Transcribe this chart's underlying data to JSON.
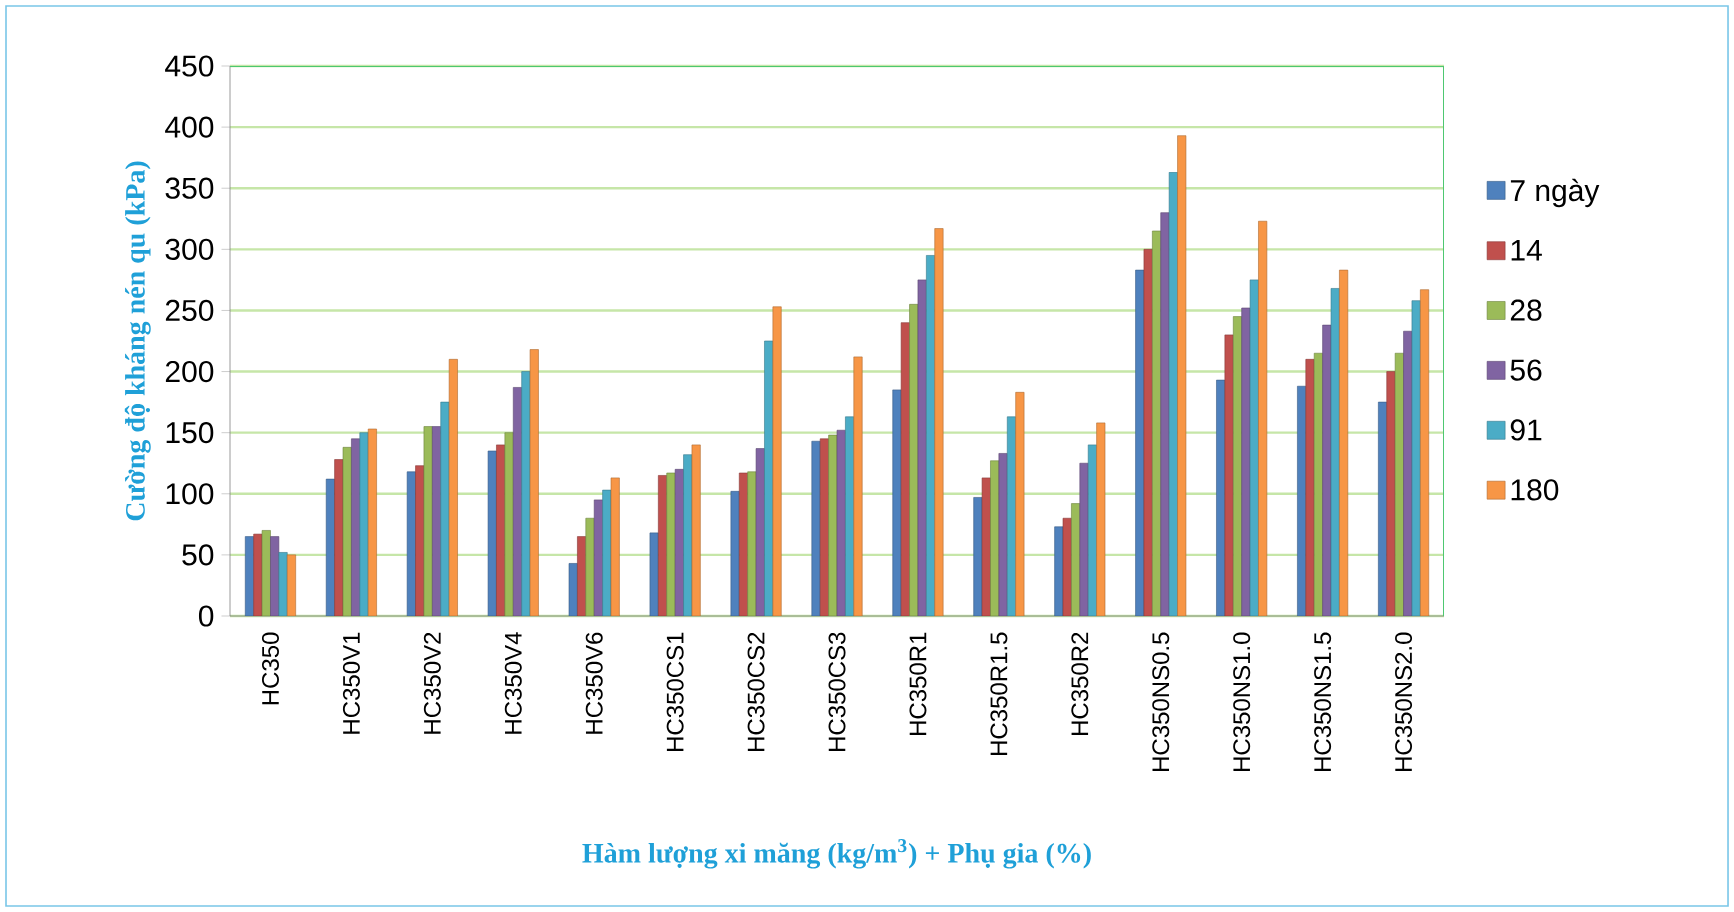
{
  "chart_data": {
    "type": "bar",
    "xlabel": "Hàm lượng xi măng (kg/m$^{3}$) + Phụ gia (%)",
    "ylabel": "Cường độ kháng nén qu (kPa)",
    "categories": [
      "HC350",
      "HC350V1",
      "HC350V2",
      "HC350V4",
      "HC350V6",
      "HC350CS1",
      "HC350CS2",
      "HC350CS3",
      "HC350R1",
      "HC350R1.5",
      "HC350R2",
      "HC350NS0.5",
      "HC350NS1.0",
      "HC350NS1.5",
      "HC350NS2.0"
    ],
    "series": [
      {
        "name": "7 ngày",
        "color": "#4f81bd",
        "values": [
          65,
          112,
          118,
          135,
          43,
          68,
          102,
          143,
          185,
          97,
          73,
          283,
          193,
          188,
          175
        ]
      },
      {
        "name": "14",
        "color": "#c0504d",
        "values": [
          67,
          128,
          123,
          140,
          65,
          115,
          117,
          145,
          240,
          113,
          80,
          300,
          230,
          210,
          200
        ]
      },
      {
        "name": "28",
        "color": "#9bbb59",
        "values": [
          70,
          138,
          155,
          150,
          80,
          117,
          118,
          148,
          255,
          127,
          92,
          315,
          245,
          215,
          215
        ]
      },
      {
        "name": "56",
        "color": "#8064a2",
        "values": [
          65,
          145,
          155,
          187,
          95,
          120,
          137,
          152,
          275,
          133,
          125,
          330,
          252,
          238,
          233
        ]
      },
      {
        "name": "91",
        "color": "#4bacc6",
        "values": [
          52,
          150,
          175,
          200,
          103,
          132,
          225,
          163,
          295,
          163,
          140,
          363,
          275,
          268,
          258
        ]
      },
      {
        "name": "180",
        "color": "#f79646",
        "values": [
          50,
          153,
          210,
          218,
          113,
          140,
          253,
          212,
          317,
          183,
          158,
          393,
          323,
          283,
          267
        ]
      }
    ],
    "ylim": [
      0,
      450
    ],
    "yticks": [
      0,
      50,
      100,
      150,
      200,
      250,
      300,
      350,
      400,
      450
    ],
    "grid": "y",
    "legend": "right"
  }
}
